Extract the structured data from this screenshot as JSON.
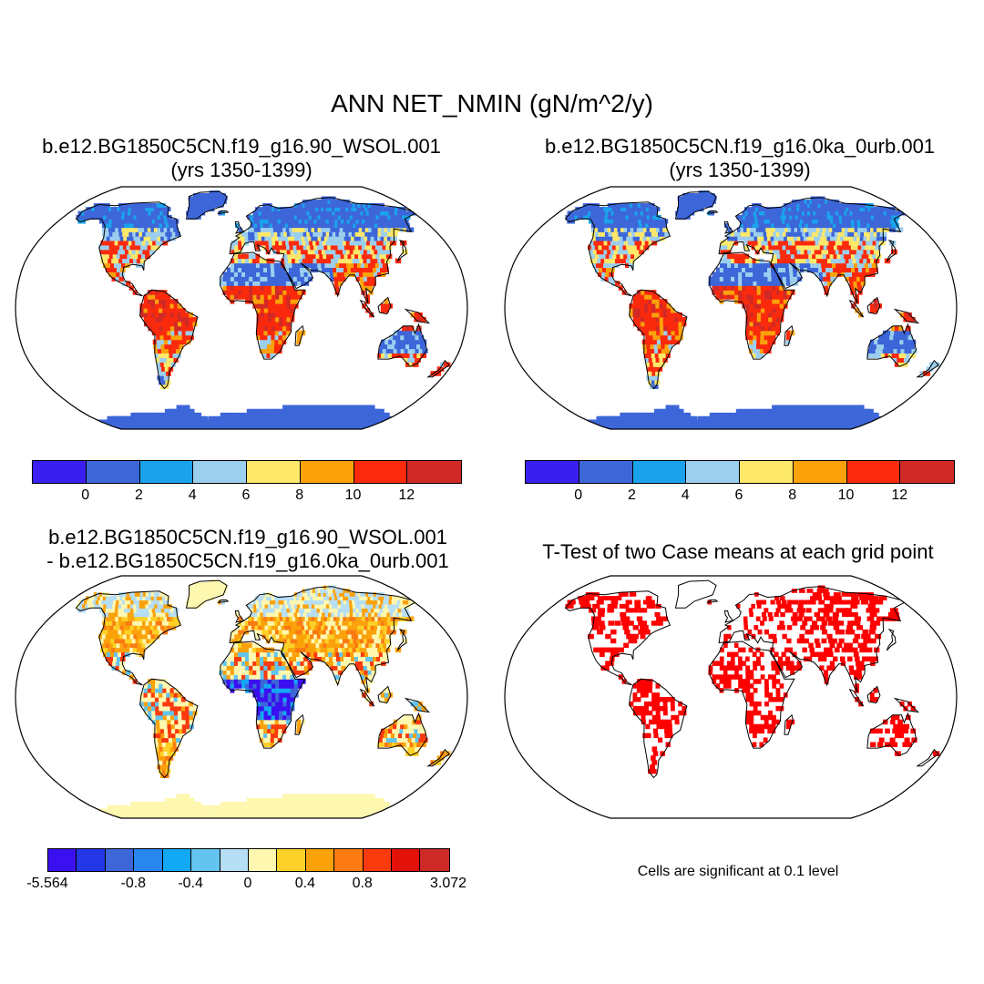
{
  "main_title": "ANN NET_NMIN (gN/m^2/y)",
  "panels": {
    "top_left": {
      "title_line1": "b.e12.BG1850C5CN.f19_g16.90_WSOL.001",
      "title_line2": "(yrs 1350-1399)"
    },
    "top_right": {
      "title_line1": "b.e12.BG1850C5CN.f19_g16.0ka_0urb.001",
      "title_line2": "(yrs 1350-1399)"
    },
    "bottom_left": {
      "title_line1": "b.e12.BG1850C5CN.f19_g16.90_WSOL.001",
      "title_line2": "- b.e12.BG1850C5CN.f19_g16.0ka_0urb.001"
    },
    "bottom_right": {
      "title_line1": "T-Test of two Case means at each grid point"
    }
  },
  "colorbar_abs": {
    "colors": [
      "#3b1ff0",
      "#3d66d9",
      "#1aa3ec",
      "#9ccfee",
      "#fde86a",
      "#fba20b",
      "#fb2a0c",
      "#d12a26"
    ],
    "ticks": [
      "0",
      "2",
      "4",
      "6",
      "8",
      "10",
      "12"
    ]
  },
  "colorbar_diff": {
    "colors": [
      "#3b10f0",
      "#2437e6",
      "#3d66d9",
      "#2a86ef",
      "#12a8f3",
      "#63c4ef",
      "#b6def4",
      "#fef7b0",
      "#fdd128",
      "#fba20b",
      "#fb7a12",
      "#fb3a0e",
      "#e2110a",
      "#cd2a28"
    ],
    "ticks": [
      "-5.564",
      "-0.8",
      "-0.4",
      "0",
      "0.4",
      "0.8",
      "3.072"
    ]
  },
  "significance_note": "Cells are significant at 0.1 level",
  "map_colors": {
    "ocean": "#ffffff",
    "coast": "#000000",
    "ttest_cell": "#ff0000"
  }
}
